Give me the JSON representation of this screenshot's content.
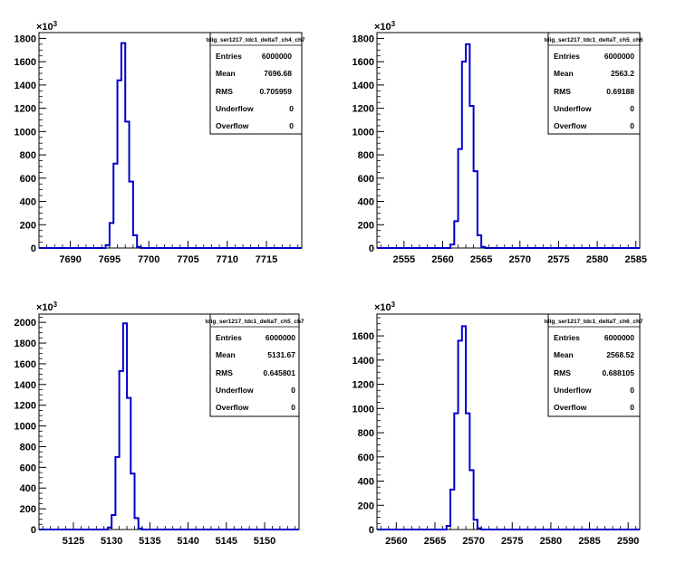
{
  "chart_data": [
    {
      "type": "histogram",
      "title": "tdig_ser1217_tdc1_deltaT_ch4_ch7",
      "y_multiplier": "10^3",
      "xlim": [
        7686,
        7719.5
      ],
      "ylim": [
        0,
        1850
      ],
      "x_ticks": [
        7690,
        7695,
        7700,
        7705,
        7710,
        7715
      ],
      "y_ticks": [
        0,
        200,
        400,
        600,
        800,
        1000,
        1200,
        1400,
        1600,
        1800
      ],
      "bin_width": 0.5,
      "bins_x": [
        7694.5,
        7695.0,
        7695.5,
        7696.0,
        7696.5,
        7697.0,
        7697.5,
        7698.0,
        7698.5
      ],
      "bins_y": [
        25,
        215,
        725,
        1440,
        1760,
        1085,
        570,
        110,
        10
      ],
      "stats": {
        "entries_label": "Entries",
        "entries": "6000000",
        "mean_label": "Mean",
        "mean": "7696.68",
        "rms_label": "RMS",
        "rms": "0.705959",
        "underflow_label": "Underflow",
        "underflow": "0",
        "overflow_label": "Overflow",
        "overflow": "0"
      },
      "line_color": "#0000cc"
    },
    {
      "type": "histogram",
      "title": "tdig_ser1217_tdc1_deltaT_ch5_ch6",
      "y_multiplier": "10^3",
      "xlim": [
        2551.5,
        2585.5
      ],
      "ylim": [
        0,
        1850
      ],
      "x_ticks": [
        2555,
        2560,
        2565,
        2570,
        2575,
        2580,
        2585
      ],
      "y_ticks": [
        0,
        200,
        400,
        600,
        800,
        1000,
        1200,
        1400,
        1600,
        1800
      ],
      "bin_width": 0.5,
      "bins_x": [
        2561.0,
        2561.5,
        2562.0,
        2562.5,
        2563.0,
        2563.5,
        2564.0,
        2564.5,
        2565.0
      ],
      "bins_y": [
        30,
        230,
        850,
        1600,
        1750,
        1220,
        660,
        110,
        10
      ],
      "stats": {
        "entries_label": "Entries",
        "entries": "6000000",
        "mean_label": "Mean",
        "mean": "2563.2",
        "rms_label": "RMS",
        "rms": "0.69188",
        "underflow_label": "Underflow",
        "underflow": "0",
        "overflow_label": "Overflow",
        "overflow": "0"
      },
      "line_color": "#0000cc"
    },
    {
      "type": "histogram",
      "title": "tdig_ser1217_tdc1_deltaT_ch5_ch7",
      "y_multiplier": "10^3",
      "xlim": [
        5120.5,
        5154.5
      ],
      "ylim": [
        0,
        2080
      ],
      "x_ticks": [
        5125,
        5130,
        5135,
        5140,
        5145,
        5150
      ],
      "y_ticks": [
        0,
        200,
        400,
        600,
        800,
        1000,
        1200,
        1400,
        1600,
        1800,
        2000
      ],
      "bin_width": 0.5,
      "bins_x": [
        5129.5,
        5130.0,
        5130.5,
        5131.0,
        5131.5,
        5132.0,
        5132.5,
        5133.0,
        5133.5
      ],
      "bins_y": [
        20,
        140,
        700,
        1530,
        1990,
        1270,
        540,
        110,
        10
      ],
      "stats": {
        "entries_label": "Entries",
        "entries": "6000000",
        "mean_label": "Mean",
        "mean": "5131.67",
        "rms_label": "RMS",
        "rms": "0.645801",
        "underflow_label": "Underflow",
        "underflow": "0",
        "overflow_label": "Overflow",
        "overflow": "0"
      },
      "line_color": "#0000cc"
    },
    {
      "type": "histogram",
      "title": "tdig_ser1217_tdc1_deltaT_ch6_ch7",
      "y_multiplier": "10^3",
      "xlim": [
        2557.5,
        2591.5
      ],
      "ylim": [
        0,
        1780
      ],
      "x_ticks": [
        2560,
        2565,
        2570,
        2575,
        2580,
        2585,
        2590
      ],
      "y_ticks": [
        0,
        200,
        400,
        600,
        800,
        1000,
        1200,
        1400,
        1600
      ],
      "bin_width": 0.5,
      "bins_x": [
        2566.5,
        2567.0,
        2567.5,
        2568.0,
        2568.5,
        2569.0,
        2569.5,
        2570.0,
        2570.5
      ],
      "bins_y": [
        30,
        330,
        960,
        1560,
        1680,
        960,
        490,
        80,
        10
      ],
      "stats": {
        "entries_label": "Entries",
        "entries": "6000000",
        "mean_label": "Mean",
        "mean": "2568.52",
        "rms_label": "RMS",
        "rms": "0.688105",
        "underflow_label": "Underflow",
        "underflow": "0",
        "overflow_label": "Overflow",
        "overflow": "0"
      },
      "line_color": "#0000cc"
    }
  ]
}
